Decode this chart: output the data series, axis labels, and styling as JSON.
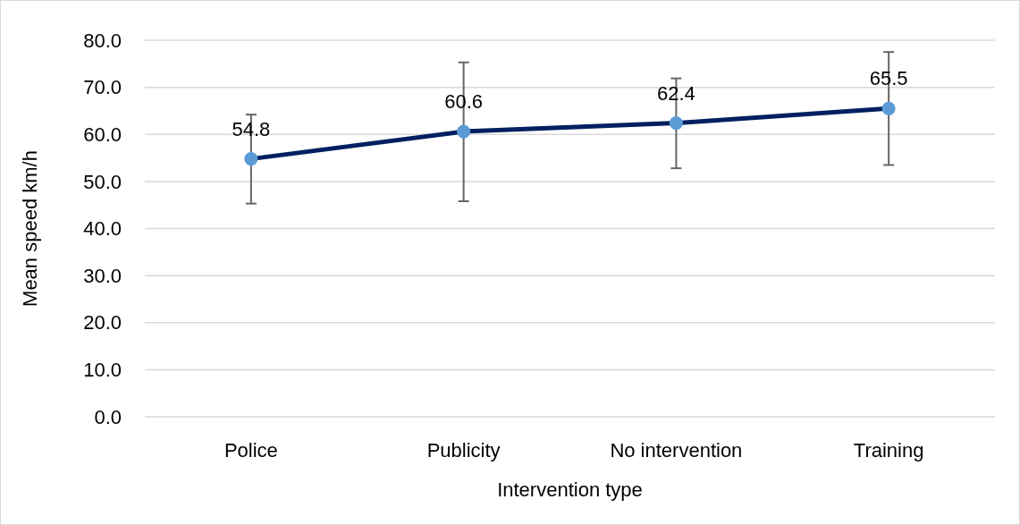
{
  "chart_data": {
    "type": "line",
    "xlabel": "Intervention type",
    "ylabel": "Mean speed km/h",
    "categories": [
      "Police",
      "Publicity",
      "No intervention",
      "Training"
    ],
    "series": [
      {
        "color": "#002060",
        "values": [
          54.8,
          60.6,
          62.4,
          65.5
        ],
        "errors": [
          [
            45.3,
            64.2
          ],
          [
            45.8,
            75.3
          ],
          [
            52.8,
            71.9
          ],
          [
            53.5,
            77.5
          ]
        ]
      }
    ],
    "marker": "circle",
    "data_labels": true,
    "grid": "y",
    "ylim": [
      0,
      80
    ],
    "yticks": [
      {
        "value": 0,
        "label": "0.0"
      },
      {
        "value": 10,
        "label": "10.0"
      },
      {
        "value": 20,
        "label": "20.0"
      },
      {
        "value": 30,
        "label": "30.0"
      },
      {
        "value": 40,
        "label": "40.0"
      },
      {
        "value": 50,
        "label": "50.0"
      },
      {
        "value": 60,
        "label": "60.0"
      },
      {
        "value": 70,
        "label": "70.0"
      },
      {
        "value": 80,
        "label": "80.0"
      }
    ]
  }
}
